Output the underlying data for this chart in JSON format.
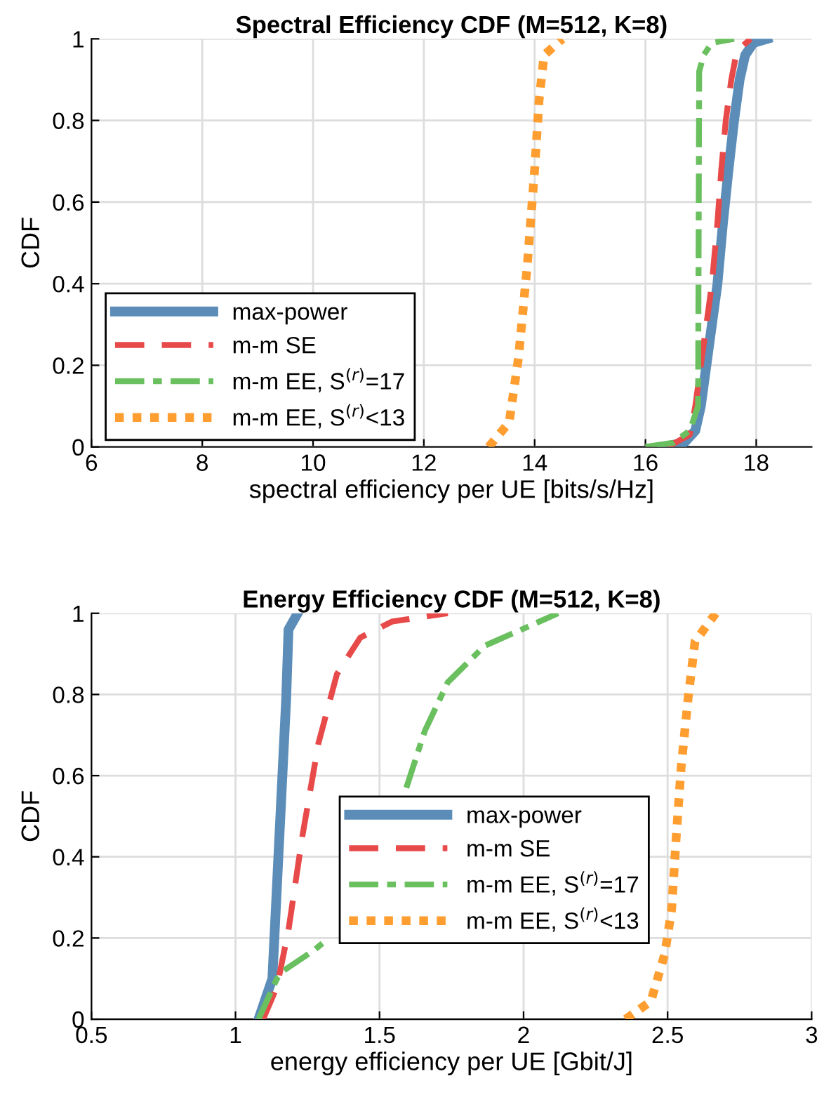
{
  "chart_data": [
    {
      "type": "line",
      "title": "Spectral Efficiency CDF (M=512, K=8)",
      "xlabel": "spectral efficiency per UE [bits/s/Hz]",
      "ylabel": "CDF",
      "xlim": [
        6,
        19
      ],
      "xticks": [
        6,
        8,
        10,
        12,
        14,
        16,
        18
      ],
      "ylim": [
        0,
        1
      ],
      "yticks": [
        0,
        0.2,
        0.4,
        0.6,
        0.8,
        1
      ],
      "grid": true,
      "legend": "bottom left",
      "series": [
        {
          "name": "max-power",
          "color": "#5b8db8",
          "line_style": "solid",
          "x": [
            16.3,
            16.7,
            16.9,
            17.0,
            17.1,
            17.2,
            17.3,
            17.4,
            17.5,
            17.6,
            17.7,
            17.8,
            17.95,
            18.2
          ],
          "values": [
            0,
            0.01,
            0.04,
            0.1,
            0.2,
            0.3,
            0.4,
            0.55,
            0.68,
            0.8,
            0.9,
            0.96,
            0.99,
            1
          ]
        },
        {
          "name": "m-m SE",
          "color": "#e84a4a",
          "line_style": "dashed",
          "x": [
            16.4,
            16.8,
            16.9,
            17.05,
            17.2,
            17.3,
            17.37,
            17.45,
            17.55,
            17.65,
            17.9
          ],
          "values": [
            0,
            0.03,
            0.1,
            0.25,
            0.4,
            0.55,
            0.68,
            0.8,
            0.9,
            0.97,
            1
          ]
        },
        {
          "name": "m-m EE, S$^{(r)}$=17",
          "color": "#6abf5f",
          "line_style": "dashdot",
          "x": [
            16.0,
            16.5,
            16.8,
            16.95,
            16.96,
            16.97,
            17.05,
            17.2,
            17.6
          ],
          "values": [
            0,
            0.01,
            0.04,
            0.1,
            0.5,
            0.92,
            0.96,
            0.99,
            1
          ]
        },
        {
          "name": "m-m EE, S$^{(r)}$<13",
          "color": "#ff9e30",
          "line_style": "dotted",
          "x": [
            13.17,
            13.54,
            13.71,
            13.87,
            14.0,
            14.08,
            14.17,
            14.5
          ],
          "values": [
            0,
            0.06,
            0.22,
            0.45,
            0.68,
            0.85,
            0.96,
            1
          ]
        }
      ]
    },
    {
      "type": "line",
      "title": "Energy Efficiency CDF (M=512, K=8)",
      "xlabel": "energy efficiency per UE [Gbit/J]",
      "ylabel": "CDF",
      "xlim": [
        0.5,
        3
      ],
      "xticks": [
        0.5,
        1,
        1.5,
        2,
        2.5,
        3
      ],
      "ylim": [
        0,
        1
      ],
      "yticks": [
        0,
        0.2,
        0.4,
        0.6,
        0.8,
        1
      ],
      "grid": true,
      "legend": "bottom center",
      "series": [
        {
          "name": "max-power",
          "color": "#5b8db8",
          "line_style": "solid",
          "x": [
            1.08,
            1.128,
            1.144,
            1.16,
            1.176,
            1.184,
            1.216
          ],
          "values": [
            0,
            0.1,
            0.33,
            0.56,
            0.79,
            0.96,
            1
          ]
        },
        {
          "name": "m-m SE",
          "color": "#e84a4a",
          "line_style": "dashed",
          "x": [
            1.096,
            1.144,
            1.184,
            1.232,
            1.288,
            1.352,
            1.433,
            1.545,
            1.737
          ],
          "values": [
            0,
            0.08,
            0.22,
            0.45,
            0.68,
            0.85,
            0.94,
            0.98,
            1
          ]
        },
        {
          "name": "m-m EE, S$^{(r)}$=17",
          "color": "#6abf5f",
          "line_style": "dashdot",
          "x": [
            1.08,
            1.144,
            1.168,
            1.273,
            1.324,
            1.45,
            1.593,
            1.657,
            1.737,
            1.865,
            2.025,
            2.12
          ],
          "values": [
            0,
            0.1,
            0.12,
            0.17,
            0.2,
            null,
            0.57,
            0.71,
            0.83,
            0.92,
            0.97,
            1
          ]
        },
        {
          "name": "m-m EE, S$^{(r)}$<13",
          "color": "#ff9e30",
          "line_style": "dotted",
          "x": [
            2.354,
            2.442,
            2.49,
            2.514,
            2.53,
            2.547,
            2.571,
            2.595,
            2.667
          ],
          "values": [
            0,
            0.044,
            0.16,
            0.27,
            0.45,
            0.62,
            0.79,
            0.93,
            1
          ]
        }
      ]
    }
  ]
}
